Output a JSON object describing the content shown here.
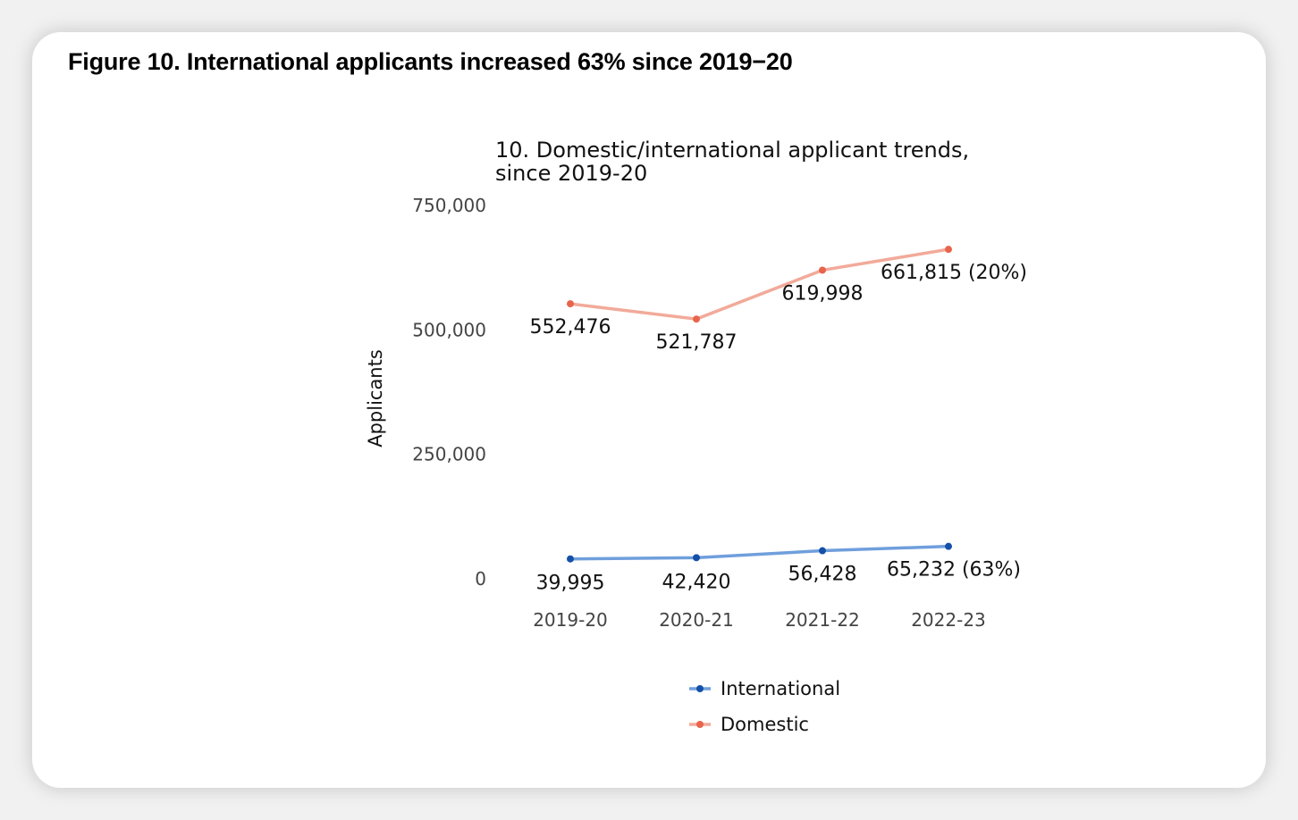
{
  "figure": {
    "title": "Figure 10. International applicants increased 63% since 2019−20"
  },
  "chart_data": {
    "type": "line",
    "title_lines": [
      "10. Domestic/international applicant trends,",
      "since 2019-20"
    ],
    "xlabel": "",
    "ylabel": "Applicants",
    "categories": [
      "2019-20",
      "2020-21",
      "2021-22",
      "2022-23"
    ],
    "ylim": [
      0,
      750000
    ],
    "yticks": [
      0,
      250000,
      500000,
      750000
    ],
    "ytick_labels": [
      "0",
      "250,000",
      "500,000",
      "750,000"
    ],
    "grid": false,
    "legend_position": "bottom",
    "series": [
      {
        "name": "International",
        "values": [
          39995,
          42420,
          56428,
          65232
        ],
        "labels": [
          "39,995",
          "42,420",
          "56,428",
          "65,232 (63%)"
        ],
        "line_color": "#6f9fdc",
        "marker_color": "#1550a8"
      },
      {
        "name": "Domestic",
        "values": [
          552476,
          521787,
          619998,
          661815
        ],
        "labels": [
          "552,476",
          "521,787",
          "619,998",
          "661,815 (20%)"
        ],
        "line_color": "#f2aa9a",
        "marker_color": "#e8654b"
      }
    ]
  }
}
